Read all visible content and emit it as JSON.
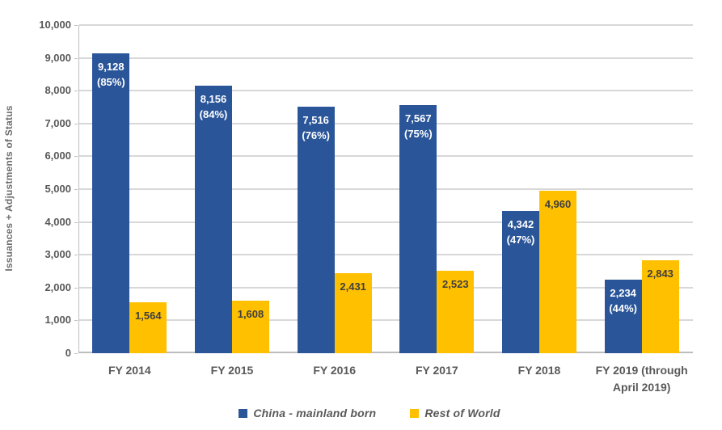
{
  "chart_data": {
    "type": "bar",
    "title": "",
    "ylabel": "Issuances + Adjustments of Status",
    "xlabel": "",
    "ylim": [
      0,
      10000
    ],
    "ytick_step": 1000,
    "ytick_labels": [
      "0",
      "1,000",
      "2,000",
      "3,000",
      "4,000",
      "5,000",
      "6,000",
      "7,000",
      "8,000",
      "9,000",
      "10,000"
    ],
    "grid": true,
    "legend_position": "bottom",
    "categories": [
      "FY 2014",
      "FY 2015",
      "FY 2016",
      "FY 2017",
      "FY 2018",
      "FY 2019 (through April 2019)"
    ],
    "category_label_lines": [
      [
        "FY 2014"
      ],
      [
        "FY 2015"
      ],
      [
        "FY 2016"
      ],
      [
        "FY 2017"
      ],
      [
        "FY 2018"
      ],
      [
        "FY 2019 (through",
        "April 2019)"
      ]
    ],
    "series": [
      {
        "name": "China - mainland born",
        "color": "#2a5699",
        "values": [
          9128,
          8156,
          7516,
          7567,
          4342,
          2234
        ],
        "data_label_lines": [
          [
            "9,128",
            "(85%)"
          ],
          [
            "8,156",
            "(84%)"
          ],
          [
            "7,516",
            "(76%)"
          ],
          [
            "7,567",
            "(75%)"
          ],
          [
            "4,342",
            "(47%)"
          ],
          [
            "2,234",
            "(44%)"
          ]
        ]
      },
      {
        "name": "Rest of World",
        "color": "#ffc000",
        "values": [
          1564,
          1608,
          2431,
          2523,
          4960,
          2843
        ],
        "data_label_lines": [
          [
            "1,564"
          ],
          [
            "1,608"
          ],
          [
            "2,431"
          ],
          [
            "2,523"
          ],
          [
            "4,960"
          ],
          [
            "2,843"
          ]
        ]
      }
    ]
  },
  "colors": {
    "series_blue": "#2a5699",
    "series_gold": "#ffc000",
    "axis_text": "#595959",
    "gridline": "#d8d8d8",
    "label_on_gold": "#3f3f3f",
    "label_on_blue": "#ffffff"
  }
}
